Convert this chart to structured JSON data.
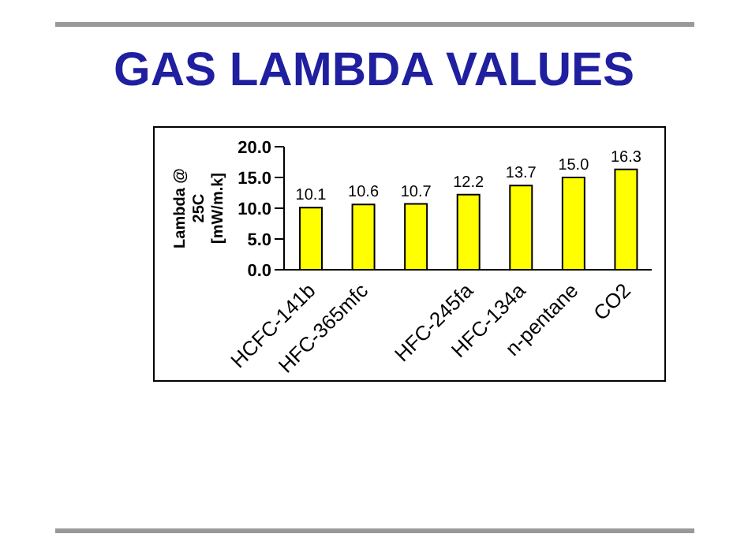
{
  "chart_data": {
    "type": "bar",
    "title": "GAS LAMBDA VALUES",
    "ylabel": "Lambda @ 25C [mW/m.k]",
    "categories": [
      "HCFC-141b",
      "HFC-365mfc",
      null,
      "HFC-245fa",
      "HFC-134a",
      "n-pentane",
      "CO2"
    ],
    "series": [
      {
        "color": "#ffff00",
        "values": [
          10.1,
          10.6,
          10.7,
          12.2,
          13.7,
          15.0,
          16.3
        ],
        "value_labels": [
          "10.1",
          "10.6",
          "10.7",
          "12.2",
          "13.7",
          "15.0",
          "16.3"
        ]
      }
    ],
    "ylim": [
      0,
      20
    ],
    "yticks": [
      {
        "value": 0,
        "label": "0.0"
      },
      {
        "value": 5,
        "label": "5.0"
      },
      {
        "value": 10,
        "label": "10.0"
      },
      {
        "value": 15,
        "label": "15.0"
      },
      {
        "value": 20,
        "label": "20.0"
      }
    ],
    "grid": false,
    "legend": false
  }
}
